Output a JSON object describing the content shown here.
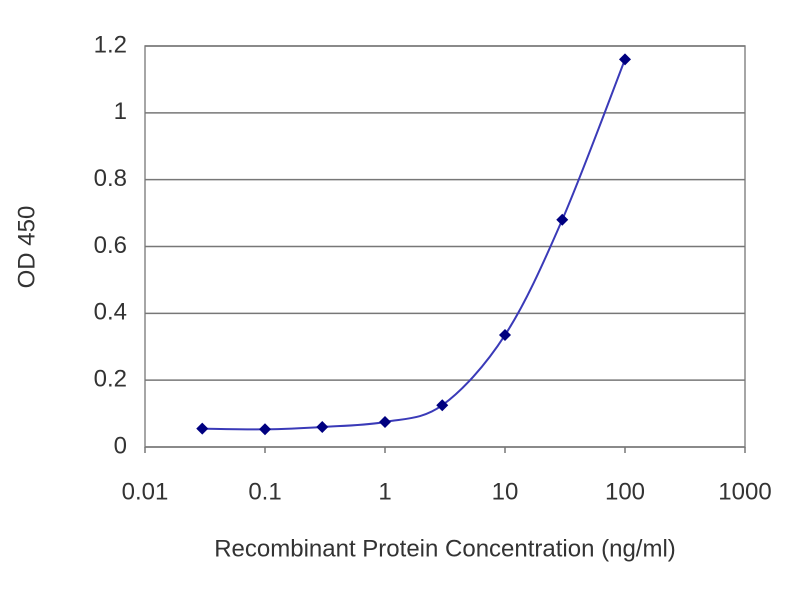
{
  "chart_data": {
    "type": "line",
    "x_label": "Recombinant Protein Concentration (ng/ml)",
    "y_label": "OD 450",
    "x": [
      0.03,
      0.1,
      0.3,
      1,
      3,
      10,
      30,
      100
    ],
    "series": [
      {
        "color": "#000080",
        "line_color": "#3a3ab8",
        "values": [
          0.055,
          0.053,
          0.06,
          0.075,
          0.125,
          0.335,
          0.68,
          1.16
        ]
      }
    ],
    "xlim": [
      0.01,
      1000
    ],
    "xticks": [
      0.01,
      0.1,
      1,
      10,
      100,
      1000
    ],
    "x_log": true,
    "ylim": [
      0,
      1.2
    ],
    "yticks": [
      0,
      0.2,
      0.4,
      0.6,
      0.8,
      1,
      1.2
    ],
    "grid": true
  }
}
